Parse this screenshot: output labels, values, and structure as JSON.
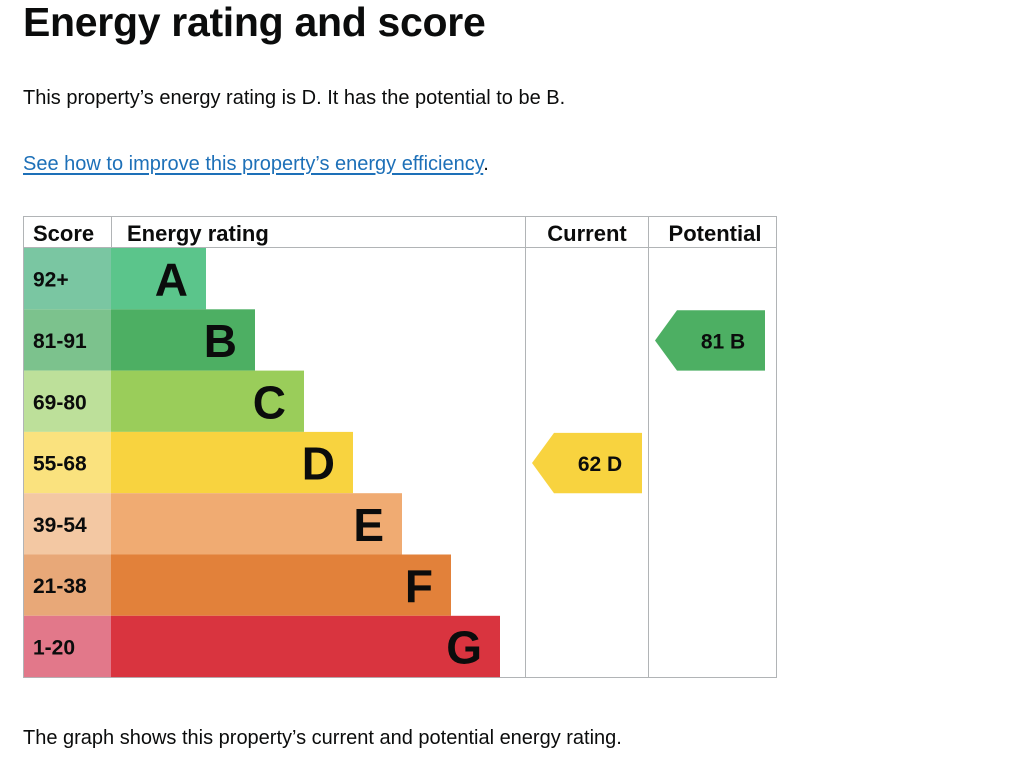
{
  "page": {
    "title": "Energy rating and score",
    "summary": "This property’s energy rating is D. It has the potential to be B.",
    "improve_link": "See how to improve this property’s energy efficiency",
    "improve_suffix": ".",
    "footer_text": "The graph shows this property’s current and potential energy rating."
  },
  "chart_data": {
    "type": "table",
    "headers": {
      "score": "Score",
      "rating": "Energy rating",
      "current": "Current",
      "potential": "Potential"
    },
    "bands": [
      {
        "score": "92+",
        "letter": "A",
        "color": "#5bc58b",
        "score_color": "#7ac6a2"
      },
      {
        "score": "81-91",
        "letter": "B",
        "color": "#4daf63",
        "score_color": "#7cc28d"
      },
      {
        "score": "69-80",
        "letter": "C",
        "color": "#9acd5a",
        "score_color": "#bde09a"
      },
      {
        "score": "55-68",
        "letter": "D",
        "color": "#f8d33f",
        "score_color": "#fae27e"
      },
      {
        "score": "39-54",
        "letter": "E",
        "color": "#f0ab72",
        "score_color": "#f3c8a3"
      },
      {
        "score": "21-38",
        "letter": "F",
        "color": "#e2813a",
        "score_color": "#e8a878"
      },
      {
        "score": "1-20",
        "letter": "G",
        "color": "#d9343f",
        "score_color": "#e2788a"
      }
    ],
    "current": {
      "score": 62,
      "letter": "D",
      "label": "62  D",
      "color": "#f8d33f"
    },
    "potential": {
      "score": 81,
      "letter": "B",
      "label": "81  B",
      "color": "#4daf63"
    }
  }
}
